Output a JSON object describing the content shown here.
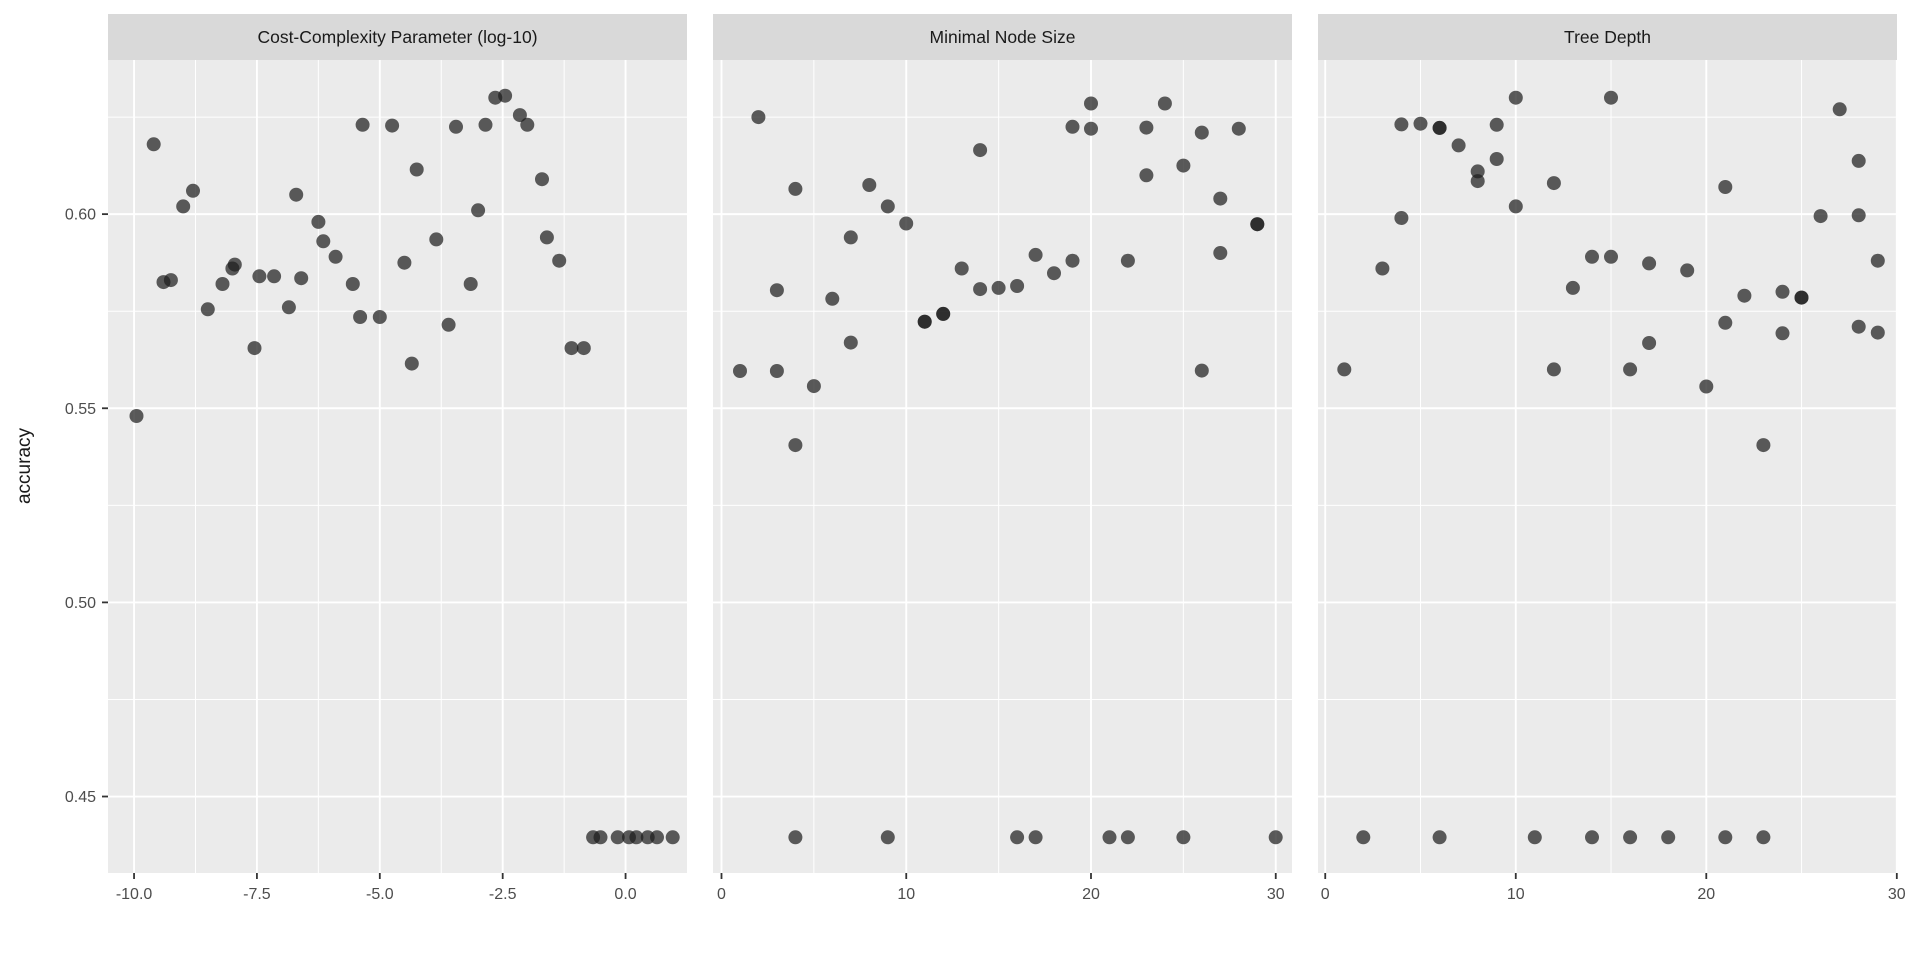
{
  "chart_data": {
    "type": "scatter",
    "description": "Faceted scatter plot (ggplot style) of model accuracy versus three tuning hyperparameters",
    "ylabel": "accuracy",
    "y_ticks": [
      0.6,
      0.55,
      0.5,
      0.45
    ],
    "y_tick_labels": [
      "0.60",
      "0.55",
      "0.50",
      "0.45"
    ],
    "y_minor_ticks": [
      0.625,
      0.575,
      0.525,
      0.475
    ],
    "y_range": [
      0.4303,
      0.6397
    ],
    "grid": "on",
    "legend": "none",
    "colors": {
      "strip_bg": "#d9d9d9",
      "panel_bg": "#ebebeb",
      "grid": "#ffffff",
      "point": "#1f1f1f",
      "tick_text": "#4d4d4d",
      "tick_mark": "#333333"
    },
    "point_opacity": 0.72,
    "point_radius": 7,
    "panels": [
      {
        "title": "Cost-Complexity Parameter (log-10)",
        "x_range": [
          -10.53,
          1.25
        ],
        "x_ticks": [
          -10.0,
          -7.5,
          -5.0,
          -2.5,
          0.0
        ],
        "x_tick_labels": [
          "-10.0",
          "-7.5",
          "-5.0",
          "-2.5",
          "0.0"
        ],
        "x_minor_ticks": [
          -8.75,
          -6.25,
          -3.75,
          -1.25
        ],
        "points": [
          [
            -2.65,
            0.63
          ],
          [
            -2.45,
            0.6305
          ],
          [
            -2.15,
            0.6255
          ],
          [
            -2.0,
            0.623
          ],
          [
            -2.85,
            0.623
          ],
          [
            -3.45,
            0.6225
          ],
          [
            -5.35,
            0.623
          ],
          [
            -4.75,
            0.6228
          ],
          [
            -9.6,
            0.618
          ],
          [
            -4.25,
            0.6115
          ],
          [
            -1.7,
            0.609
          ],
          [
            -8.8,
            0.606
          ],
          [
            -9.0,
            0.602
          ],
          [
            -6.7,
            0.605
          ],
          [
            -3.0,
            0.601
          ],
          [
            -6.25,
            0.598
          ],
          [
            -6.15,
            0.593
          ],
          [
            -3.85,
            0.5935
          ],
          [
            -1.6,
            0.594
          ],
          [
            -1.35,
            0.588
          ],
          [
            -7.45,
            0.584
          ],
          [
            -7.15,
            0.584
          ],
          [
            -9.25,
            0.583
          ],
          [
            -8.0,
            0.586
          ],
          [
            -7.95,
            0.587
          ],
          [
            -5.9,
            0.589
          ],
          [
            -4.5,
            0.5875
          ],
          [
            -9.4,
            0.5825
          ],
          [
            -8.2,
            0.582
          ],
          [
            -6.6,
            0.5835
          ],
          [
            -5.55,
            0.582
          ],
          [
            -3.15,
            0.582
          ],
          [
            -8.5,
            0.5755
          ],
          [
            -6.85,
            0.576
          ],
          [
            -5.4,
            0.5735
          ],
          [
            -5.0,
            0.5735
          ],
          [
            -3.6,
            0.5715
          ],
          [
            -7.55,
            0.5655
          ],
          [
            -1.1,
            0.5655
          ],
          [
            -0.85,
            0.5655
          ],
          [
            -4.35,
            0.5615
          ],
          [
            -9.95,
            0.548
          ],
          [
            -0.66,
            0.4395
          ],
          [
            -0.51,
            0.4395
          ],
          [
            -0.16,
            0.4395
          ],
          [
            0.07,
            0.4395
          ],
          [
            0.22,
            0.4395
          ],
          [
            0.45,
            0.4395
          ],
          [
            0.64,
            0.4395
          ],
          [
            0.96,
            0.4395
          ]
        ]
      },
      {
        "title": "Minimal Node Size",
        "x_range": [
          -0.46,
          30.88
        ],
        "x_ticks": [
          0,
          10,
          20,
          30
        ],
        "x_tick_labels": [
          "0",
          "10",
          "20",
          "30"
        ],
        "x_minor_ticks": [
          5,
          15,
          25
        ],
        "points": [
          [
            20,
            0.6285
          ],
          [
            24,
            0.6285
          ],
          [
            2,
            0.625
          ],
          [
            19,
            0.6225
          ],
          [
            20,
            0.622
          ],
          [
            23,
            0.6223
          ],
          [
            26,
            0.621
          ],
          [
            28,
            0.622
          ],
          [
            14,
            0.6165
          ],
          [
            25,
            0.6125
          ],
          [
            23,
            0.61
          ],
          [
            4,
            0.6065
          ],
          [
            8,
            0.6075
          ],
          [
            9,
            0.602
          ],
          [
            27,
            0.604
          ],
          [
            10,
            0.5976
          ],
          [
            7,
            0.594
          ],
          [
            17,
            0.5895
          ],
          [
            19,
            0.588
          ],
          [
            22,
            0.588
          ],
          [
            27,
            0.59
          ],
          [
            29,
            0.5974
          ],
          [
            29,
            0.5974
          ],
          [
            13,
            0.586
          ],
          [
            18,
            0.5848
          ],
          [
            3,
            0.5804
          ],
          [
            6,
            0.5782
          ],
          [
            14,
            0.5807
          ],
          [
            15,
            0.581
          ],
          [
            16,
            0.5815
          ],
          [
            11,
            0.5723
          ],
          [
            11,
            0.5723
          ],
          [
            12,
            0.5743
          ],
          [
            12,
            0.5743
          ],
          [
            7,
            0.5669
          ],
          [
            1,
            0.5596
          ],
          [
            3,
            0.5596
          ],
          [
            5,
            0.5557
          ],
          [
            26,
            0.5597
          ],
          [
            4,
            0.5405
          ],
          [
            4,
            0.4395
          ],
          [
            9,
            0.4395
          ],
          [
            16,
            0.4395
          ],
          [
            17,
            0.4395
          ],
          [
            21,
            0.4395
          ],
          [
            22,
            0.4395
          ],
          [
            25,
            0.4395
          ],
          [
            30,
            0.4395
          ]
        ]
      },
      {
        "title": "Tree Depth",
        "x_range": [
          -0.38,
          30.01
        ],
        "x_ticks": [
          0,
          10,
          20,
          30
        ],
        "x_tick_labels": [
          "0",
          "10",
          "20",
          "30"
        ],
        "x_minor_ticks": [
          5,
          15,
          25
        ],
        "points": [
          [
            10,
            0.63
          ],
          [
            15,
            0.63
          ],
          [
            4,
            0.6231
          ],
          [
            5,
            0.6233
          ],
          [
            6,
            0.6222
          ],
          [
            6,
            0.6222
          ],
          [
            9,
            0.623
          ],
          [
            27,
            0.627
          ],
          [
            7,
            0.6177
          ],
          [
            9,
            0.6142
          ],
          [
            8,
            0.611
          ],
          [
            8,
            0.6085
          ],
          [
            28,
            0.6137
          ],
          [
            12,
            0.608
          ],
          [
            21,
            0.607
          ],
          [
            10,
            0.602
          ],
          [
            4,
            0.599
          ],
          [
            26,
            0.5995
          ],
          [
            28,
            0.5997
          ],
          [
            15,
            0.589
          ],
          [
            14,
            0.589
          ],
          [
            3,
            0.586
          ],
          [
            17,
            0.5873
          ],
          [
            19,
            0.5855
          ],
          [
            29,
            0.588
          ],
          [
            13,
            0.581
          ],
          [
            22,
            0.579
          ],
          [
            24,
            0.58
          ],
          [
            25,
            0.5785
          ],
          [
            25,
            0.5785
          ],
          [
            21,
            0.572
          ],
          [
            24,
            0.5693
          ],
          [
            28,
            0.571
          ],
          [
            29,
            0.5695
          ],
          [
            17,
            0.5668
          ],
          [
            1,
            0.56
          ],
          [
            12,
            0.56
          ],
          [
            16,
            0.56
          ],
          [
            20,
            0.5556
          ],
          [
            23,
            0.5405
          ],
          [
            2,
            0.4395
          ],
          [
            6,
            0.4395
          ],
          [
            11,
            0.4395
          ],
          [
            14,
            0.4395
          ],
          [
            16,
            0.4395
          ],
          [
            18,
            0.4395
          ],
          [
            21,
            0.4395
          ],
          [
            23,
            0.4395
          ]
        ]
      }
    ]
  }
}
